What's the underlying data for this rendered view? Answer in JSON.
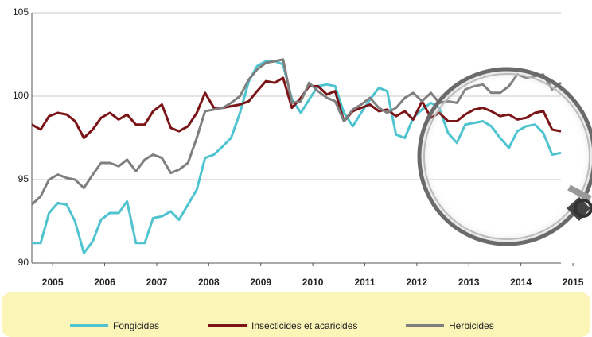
{
  "chart_data": {
    "type": "line",
    "x": [
      2004.6,
      2004.77,
      2004.93,
      2005.1,
      2005.27,
      2005.43,
      2005.6,
      2005.77,
      2005.93,
      2006.1,
      2006.27,
      2006.43,
      2006.6,
      2006.77,
      2006.93,
      2007.1,
      2007.27,
      2007.43,
      2007.6,
      2007.77,
      2007.93,
      2008.1,
      2008.27,
      2008.43,
      2008.6,
      2008.77,
      2008.93,
      2009.1,
      2009.27,
      2009.43,
      2009.6,
      2009.77,
      2009.93,
      2010.1,
      2010.27,
      2010.43,
      2010.6,
      2010.77,
      2010.93,
      2011.1,
      2011.27,
      2011.43,
      2011.6,
      2011.77,
      2011.93,
      2012.1,
      2012.27,
      2012.43,
      2012.6,
      2012.77,
      2012.93,
      2013.1,
      2013.27,
      2013.43,
      2013.6,
      2013.77,
      2013.93,
      2014.1,
      2014.27,
      2014.43,
      2014.6,
      2014.77
    ],
    "series": [
      {
        "name": "Fongicides",
        "color": "#4fc4d0",
        "values": [
          91.2,
          91.2,
          93,
          93.6,
          93.5,
          92.5,
          90.6,
          91.3,
          92.6,
          93,
          93,
          93.7,
          91.2,
          91.2,
          92.7,
          92.8,
          93.1,
          92.6,
          93.5,
          94.4,
          96.3,
          96.5,
          97,
          97.5,
          99,
          100.9,
          101.8,
          102.1,
          102.1,
          101.9,
          99.8,
          99,
          99.8,
          100.6,
          100.7,
          100.6,
          99,
          98.2,
          99,
          99.8,
          100.5,
          100.3,
          97.7,
          97.5,
          98.7,
          99.2,
          99.6,
          99.3,
          97.8,
          97.2,
          98.3,
          98.4,
          98.5,
          98.2,
          97.5,
          96.9,
          97.9,
          98.2,
          98.3,
          97.8,
          96.5,
          96.6
        ]
      },
      {
        "name": "Insecticides et acaricides",
        "color": "#7b1416",
        "values": [
          98.3,
          98,
          98.8,
          99,
          98.9,
          98.5,
          97.5,
          98,
          98.7,
          99,
          98.6,
          98.9,
          98.3,
          98.3,
          99.1,
          99.5,
          98.1,
          97.9,
          98.2,
          99,
          100.2,
          99.3,
          99.3,
          99.4,
          99.5,
          99.7,
          100.3,
          100.9,
          100.8,
          101.1,
          99.3,
          99.9,
          100.6,
          100.6,
          100.1,
          100.3,
          98.5,
          99.1,
          99.3,
          99.5,
          99.1,
          99.2,
          98.8,
          99.1,
          98.6,
          99.7,
          98.7,
          99,
          98.5,
          98.5,
          98.9,
          99.2,
          99.3,
          99.1,
          98.8,
          98.9,
          98.6,
          98.7,
          99,
          99.1,
          98,
          97.9
        ]
      },
      {
        "name": "Herbicides",
        "color": "#7f7f7f",
        "values": [
          93.5,
          94,
          95,
          95.3,
          95.1,
          95,
          94.5,
          95.3,
          96,
          96,
          95.8,
          96.2,
          95.5,
          96.2,
          96.5,
          96.3,
          95.4,
          95.6,
          96,
          97.5,
          99.1,
          99.2,
          99.3,
          99.6,
          100,
          101,
          101.6,
          102,
          102.1,
          102.2,
          99.6,
          99.7,
          100.8,
          100.3,
          99.9,
          99.7,
          98.5,
          99.2,
          99.5,
          99.9,
          99.3,
          99,
          99.3,
          99.9,
          100.2,
          99.7,
          100.2,
          99.6,
          99.7,
          99.6,
          100.4,
          100.6,
          100.7,
          100.2,
          100.2,
          100.6,
          101.3,
          101.1,
          101.2,
          101.3,
          100.4,
          100.8
        ]
      }
    ],
    "xlim": [
      2004.6,
      2014.77
    ],
    "xticks": [
      2005,
      2006,
      2007,
      2008,
      2009,
      2010,
      2011,
      2012,
      2013,
      2014,
      2015
    ],
    "ylim": [
      90,
      105
    ],
    "yticks": [
      90,
      95,
      100,
      105
    ],
    "grid": true,
    "legend": "bottom"
  }
}
